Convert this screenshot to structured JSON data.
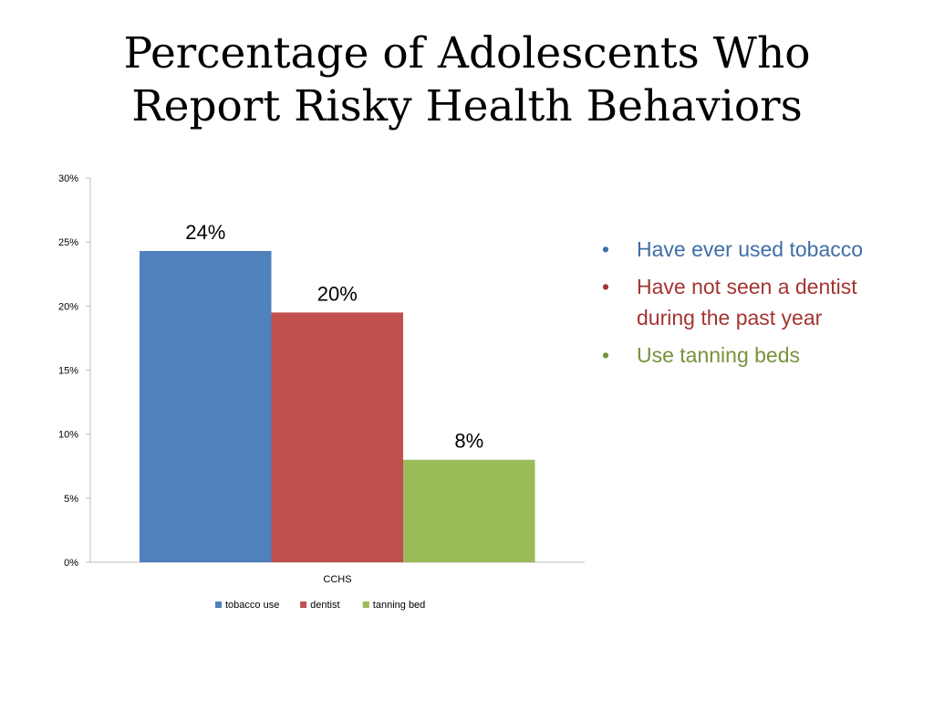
{
  "slide": {
    "title_lines": [
      "Percentage of Adolescents Who",
      "Report Risky Health Behaviors"
    ]
  },
  "bullets": [
    {
      "text": "Have ever used tobacco",
      "color": "#3E6FA7"
    },
    {
      "text": "Have not seen a dentist during the past year",
      "color": "#A33532"
    },
    {
      "text": "Use tanning beds",
      "color": "#77933C"
    }
  ],
  "chart_data": {
    "type": "bar",
    "categories": [
      "CCHS"
    ],
    "series": [
      {
        "name": "tobacco use",
        "values": [
          24.3
        ],
        "label": "24%",
        "color": "#4F81BD"
      },
      {
        "name": "dentist",
        "values": [
          19.5
        ],
        "label": "20%",
        "color": "#C0504D"
      },
      {
        "name": "tanning bed",
        "values": [
          8.0
        ],
        "label": "8%",
        "color": "#9BBB59"
      }
    ],
    "ylim": [
      0,
      30
    ],
    "yticks": [
      0,
      5,
      10,
      15,
      20,
      25,
      30
    ],
    "ytick_labels": [
      "0%",
      "5%",
      "10%",
      "15%",
      "20%",
      "25%",
      "30%"
    ],
    "grid": false,
    "legend_position": "bottom"
  }
}
